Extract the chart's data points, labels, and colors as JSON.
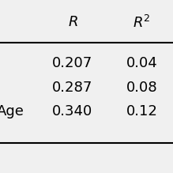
{
  "headers": [
    "$R$",
    "$R^2$"
  ],
  "rows": [
    [
      "",
      "0.207",
      "0.04"
    ],
    [
      "",
      "0.287",
      "0.08"
    ],
    [
      "Age",
      "0.340",
      "0.12"
    ]
  ],
  "bg_color": "#f0f0f0",
  "line_color": "#000000",
  "font_size": 13,
  "header_font_size": 13
}
